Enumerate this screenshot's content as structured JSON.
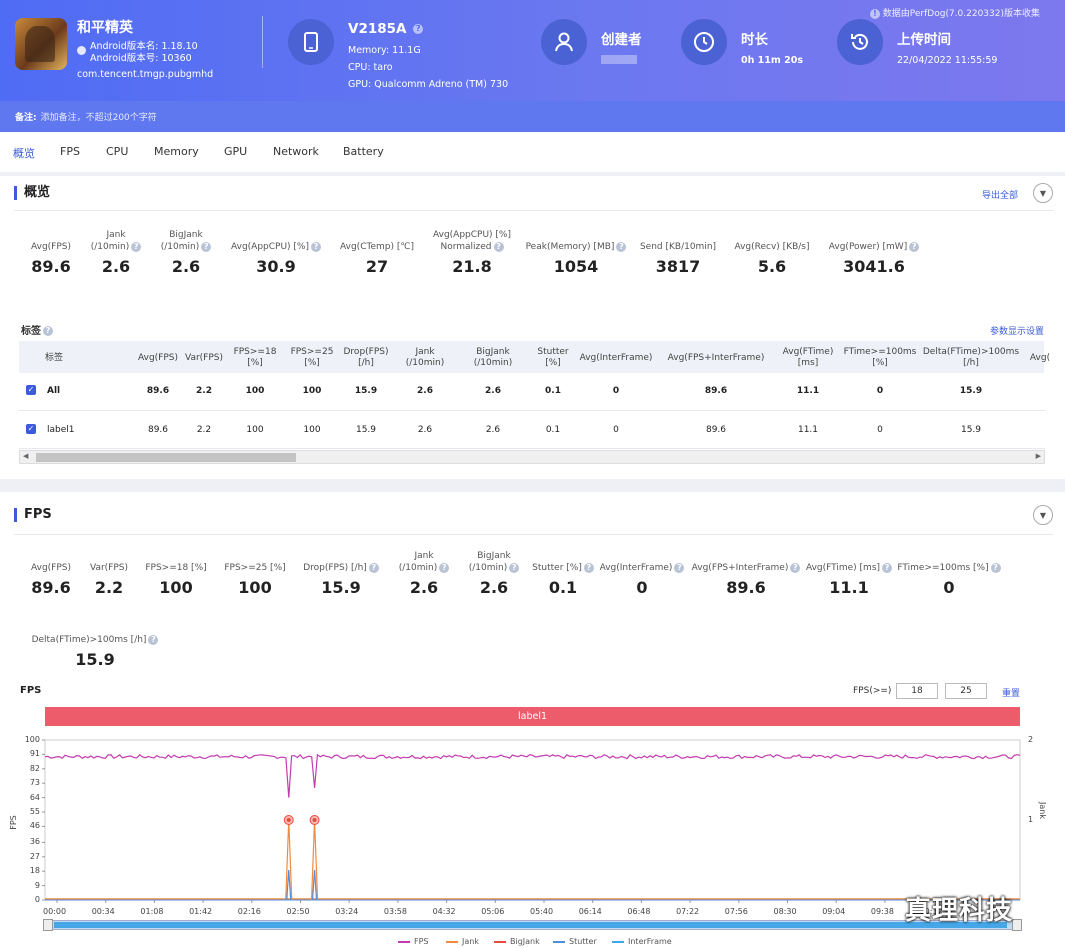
{
  "header": {
    "app_name": "和平精英",
    "app_version": "Android版本名: 1.18.10",
    "app_code": "Android版本号: 10360",
    "package": "com.tencent.tmgp.pubgmhd",
    "device": "V2185A",
    "memory": "Memory: 11.1G",
    "cpu": "CPU: taro",
    "gpu": "GPU: Qualcomm Adreno (TM) 730",
    "creator_label": "创建者",
    "duration_label": "时长",
    "duration": "0h 11m 20s",
    "upload_label": "上传时间",
    "upload_time": "22/04/2022 11:55:59",
    "perfdog": "数据由PerfDog(7.0.220332)版本收集",
    "note_label": "备注:",
    "note_placeholder": "添加备注，不超过200个字符"
  },
  "tabs": [
    "概览",
    "FPS",
    "CPU",
    "Memory",
    "GPU",
    "Network",
    "Battery"
  ],
  "overview": {
    "title": "概览",
    "export": "导出全部",
    "metrics": [
      {
        "l1": "",
        "l2": "Avg(FPS)",
        "v": "89.6"
      },
      {
        "l1": "Jank",
        "l2": "(/10min)",
        "v": "2.6"
      },
      {
        "l1": "BigJank",
        "l2": "(/10min)",
        "v": "2.6"
      },
      {
        "l1": "",
        "l2": "Avg(AppCPU) [%]",
        "v": "30.9"
      },
      {
        "l1": "",
        "l2": "Avg(CTemp) [℃]",
        "v": "27"
      },
      {
        "l1": "Avg(AppCPU) [%]",
        "l2": "Normalized",
        "v": "21.8"
      },
      {
        "l1": "",
        "l2": "Peak(Memory) [MB]",
        "v": "1054"
      },
      {
        "l1": "",
        "l2": "Send [KB/10min]",
        "v": "3817"
      },
      {
        "l1": "",
        "l2": "Avg(Recv) [KB/s]",
        "v": "5.6"
      },
      {
        "l1": "",
        "l2": "Avg(Power) [mW]",
        "v": "3041.6"
      }
    ]
  },
  "labels_table": {
    "title": "标签",
    "settings": "参数显示设置",
    "headers": [
      "标签",
      "Avg(FPS)",
      "Var(FPS)",
      "FPS>=18\n[%]",
      "FPS>=25\n[%]",
      "Drop(FPS)\n[/h]",
      "Jank\n(/10min)",
      "BigJank\n(/10min)",
      "Stutter\n[%]",
      "Avg(InterFrame)",
      "Avg(FPS+InterFrame)",
      "Avg(FTime)\n[ms]",
      "FTime>=100ms\n[%]",
      "Delta(FTime)>100ms\n[/h]",
      "Avg("
    ],
    "rows": [
      {
        "cells": [
          "All",
          "89.6",
          "2.2",
          "100",
          "100",
          "15.9",
          "2.6",
          "2.6",
          "0.1",
          "0",
          "89.6",
          "11.1",
          "0",
          "15.9"
        ]
      },
      {
        "cells": [
          "label1",
          "89.6",
          "2.2",
          "100",
          "100",
          "15.9",
          "2.6",
          "2.6",
          "0.1",
          "0",
          "89.6",
          "11.1",
          "0",
          "15.9"
        ]
      }
    ]
  },
  "fps_section": {
    "title": "FPS",
    "metrics": [
      {
        "l1": "",
        "l2": "Avg(FPS)",
        "v": "89.6"
      },
      {
        "l1": "",
        "l2": "Var(FPS)",
        "v": "2.2"
      },
      {
        "l1": "",
        "l2": "FPS>=18 [%]",
        "v": "100"
      },
      {
        "l1": "",
        "l2": "FPS>=25 [%]",
        "v": "100"
      },
      {
        "l1": "",
        "l2": "Drop(FPS) [/h]",
        "v": "15.9"
      },
      {
        "l1": "Jank",
        "l2": "(/10min)",
        "v": "2.6"
      },
      {
        "l1": "BigJank",
        "l2": "(/10min)",
        "v": "2.6"
      },
      {
        "l1": "",
        "l2": "Stutter [%]",
        "v": "0.1"
      },
      {
        "l1": "",
        "l2": "Avg(InterFrame)",
        "v": "0"
      },
      {
        "l1": "",
        "l2": "Avg(FPS+InterFrame)",
        "v": "89.6"
      },
      {
        "l1": "",
        "l2": "Avg(FTime) [ms]",
        "v": "11.1"
      },
      {
        "l1": "",
        "l2": "FTime>=100ms [%]",
        "v": "0"
      },
      {
        "l1": "",
        "l2": "Delta(FTime)>100ms [/h]",
        "v": "15.9"
      }
    ],
    "chart_title": "FPS",
    "fps_threshold_label": "FPS(>=)",
    "threshold1": "18",
    "threshold2": "25",
    "reset": "重置",
    "label_bar": "label1"
  },
  "chart_data": {
    "type": "line",
    "ylabel": "FPS",
    "y2label": "Jank",
    "ylim": [
      0,
      100
    ],
    "y2lim": [
      0,
      2
    ],
    "yticks": [
      "0",
      "9",
      "18",
      "27",
      "36",
      "46",
      "55",
      "64",
      "73",
      "82",
      "91",
      "100"
    ],
    "y2ticks": [
      "1",
      "2"
    ],
    "xticks": [
      "00:00",
      "00:34",
      "01:08",
      "01:42",
      "02:16",
      "02:50",
      "03:24",
      "03:58",
      "04:32",
      "05:06",
      "05:40",
      "06:14",
      "06:48",
      "07:22",
      "07:56",
      "08:30",
      "09:04",
      "09:38",
      "10:12"
    ],
    "duration_s": 680,
    "fps_baseline": 89.6,
    "fps_dips": [
      {
        "t": 170,
        "fps": 64
      },
      {
        "t": 188,
        "fps": 70
      }
    ],
    "jank_events": [
      {
        "t": 170,
        "value": 1
      },
      {
        "t": 188,
        "value": 1
      }
    ],
    "bigjank_events": [
      {
        "t": 170,
        "value": 1
      },
      {
        "t": 188,
        "value": 1
      }
    ],
    "series": [
      {
        "name": "FPS",
        "color": "#c43bb0"
      },
      {
        "name": "Jank",
        "color": "#f28a3c"
      },
      {
        "name": "BigJank",
        "color": "#e84b3c"
      },
      {
        "name": "Stutter",
        "color": "#4f8de0"
      },
      {
        "name": "InterFrame",
        "color": "#3ba9e8"
      }
    ]
  },
  "watermark": "真理科技"
}
